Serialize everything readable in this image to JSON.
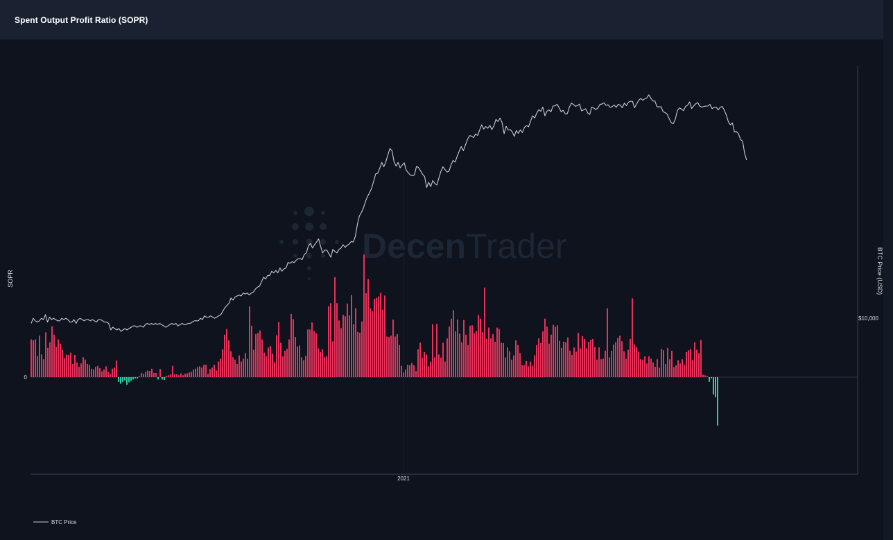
{
  "page": {
    "title": "Spent Output Profit Ratio (SOPR)"
  },
  "watermark": {
    "text_bold": "Decen",
    "text_light": "Trader"
  },
  "chart_data": {
    "type": "bar",
    "title": "Spent Output Profit Ratio (SOPR)",
    "left_axis": {
      "label": "SOPR",
      "ticks": [
        "0"
      ]
    },
    "right_axis": {
      "label": "BTC Price (USD)",
      "ticks": [
        "$10,000"
      ]
    },
    "x_axis": {
      "ticks": [
        "2021"
      ]
    },
    "colors": {
      "positive": "#e8325a",
      "negative": "#26d0a0",
      "price_line": "#c9ccd3",
      "grid": "#263041"
    },
    "legend": {
      "position": "bottom-left",
      "entries": [
        {
          "name": "BTC Price",
          "color": "#c9ccd3"
        }
      ]
    },
    "series": [
      {
        "name": "SOPR",
        "type": "bar",
        "values": [
          0.8,
          0.78,
          0.8,
          0.45,
          0.88,
          0.48,
          0.38,
          0.95,
          0.62,
          0.74,
          1.08,
          0.9,
          0.64,
          0.8,
          0.71,
          0.58,
          0.4,
          0.48,
          0.47,
          0.52,
          0.28,
          0.47,
          0.31,
          0.22,
          0.29,
          0.42,
          0.37,
          0.28,
          0.26,
          0.18,
          0.16,
          0.22,
          0.24,
          0.19,
          0.12,
          0.16,
          0.23,
          0.11,
          0.07,
          0.18,
          0.2,
          0.35,
          -0.1,
          -0.14,
          -0.1,
          -0.07,
          -0.16,
          -0.11,
          -0.08,
          -0.05,
          -0.03,
          -0.03,
          0.02,
          0.09,
          0.07,
          0.11,
          0.14,
          0.13,
          0.18,
          0.09,
          0.09,
          -0.05,
          0.17,
          -0.05,
          -0.06,
          0.03,
          0.04,
          0.06,
          0.24,
          0.06,
          0.06,
          0.04,
          0.08,
          0.04,
          0.07,
          0.08,
          0.1,
          0.11,
          0.16,
          0.18,
          0.21,
          0.23,
          0.2,
          0.26,
          0.26,
          0.07,
          0.17,
          0.2,
          0.26,
          0.14,
          0.33,
          0.39,
          0.59,
          0.9,
          1.02,
          0.78,
          0.55,
          0.42,
          0.37,
          0.28,
          0.46,
          0.33,
          0.39,
          0.51,
          0.39,
          1.5,
          1.09,
          0.58,
          0.91,
          0.94,
          0.99,
          0.8,
          0.52,
          0.44,
          0.63,
          0.66,
          0.5,
          0.32,
          0.89,
          1.17,
          0.73,
          0.44,
          0.56,
          0.6,
          0.8,
          1.34,
          1.23,
          0.85,
          0.65,
          0.67,
          0.42,
          0.36,
          0.45,
          1.01,
          1.01,
          1.16,
          0.98,
          0.93,
          0.61,
          0.53,
          0.59,
          0.42,
          0.44,
          1.5,
          1.57,
          0.76,
          2.12,
          1.57,
          1.2,
          1.04,
          1.32,
          1.29,
          1.56,
          1.31,
          1.74,
          1.12,
          1.46,
          0.96,
          0.94,
          1.18,
          2.6,
          1.78,
          2.08,
          1.46,
          1.4,
          1.66,
          1.68,
          1.71,
          1.79,
          1.43,
          1.73,
          0.86,
          0.85,
          0.88,
          1.22,
          0.86,
          0.91,
          0.68,
          0.24,
          0.1,
          0.16,
          0.26,
          0.25,
          0.3,
          0.25,
          0.13,
          0.59,
          0.73,
          0.41,
          0.53,
          0.48,
          0.23,
          0.33,
          1.12,
          0.42,
          1.13,
          0.48,
          0.41,
          0.73,
          0.33,
          0.82,
          1.07,
          1.24,
          1.42,
          0.97,
          1.22,
          0.92,
          0.74,
          1.21,
          0.9,
          0.68,
          1.09,
          1.1,
          0.93,
          0.97,
          1.32,
          1.24,
          0.95,
          1.9,
          0.81,
          1.05,
          0.82,
          0.91,
          0.75,
          1.05,
          1.02,
          0.73,
          0.72,
          0.42,
          0.63,
          0.55,
          0.37,
          0.46,
          0.78,
          0.68,
          0.51,
          0.25,
          0.25,
          0.34,
          0.23,
          0.33,
          0.24,
          0.46,
          0.68,
          0.82,
          0.72,
          0.97,
          1.24,
          1.07,
          0.71,
          0.9,
          1.11,
          1.07,
          1.1,
          0.77,
          0.62,
          0.75,
          0.74,
          0.84,
          0.56,
          0.47,
          0.63,
          0.54,
          0.94,
          0.61,
          0.87,
          0.81,
          0.61,
          0.75,
          0.79,
          0.81,
          0.64,
          0.37,
          0.63,
          0.38,
          0.39,
          0.56,
          1.46,
          0.42,
          0.56,
          0.69,
          0.74,
          0.83,
          0.88,
          0.76,
          0.55,
          0.39,
          0.58,
          0.81,
          1.67,
          0.69,
          0.64,
          0.54,
          0.38,
          0.37,
          0.44,
          0.29,
          0.44,
          0.39,
          0.31,
          0.22,
          0.38,
          0.2,
          0.6,
          0.57,
          0.28,
          0.62,
          0.38,
          0.56,
          0.21,
          0.25,
          0.36,
          0.29,
          0.38,
          0.26,
          0.53,
          0.57,
          0.6,
          0.36,
          0.74,
          0.58,
          0.51,
          0.79,
          0.05,
          0.04,
          0.02,
          -0.1,
          -0.03,
          -0.37,
          -0.43,
          -1.03
        ]
      },
      {
        "name": "BTC Price",
        "type": "line",
        "values": [
          9300,
          9700,
          9500,
          9400,
          9500,
          9700,
          9600,
          10000,
          9400,
          9800,
          9600,
          9700,
          9600,
          9500,
          9500,
          9700,
          9600,
          9700,
          9600,
          9400,
          9400,
          9600,
          9300,
          9600,
          9700,
          9600,
          9500,
          9600,
          9600,
          9500,
          9600,
          9500,
          9400,
          9600,
          9600,
          9500,
          9400,
          9400,
          9300,
          8800,
          9000,
          8900,
          8800,
          8900,
          8700,
          8800,
          8900,
          8800,
          8900,
          9000,
          9100,
          9100,
          9000,
          9100,
          9100,
          9000,
          9200,
          9300,
          9200,
          9300,
          9200,
          9300,
          9200,
          9300,
          9200,
          9100,
          9000,
          9100,
          9200,
          9300,
          9200,
          9300,
          9100,
          9200,
          9300,
          9200,
          9200,
          9300,
          9300,
          9400,
          9500,
          9500,
          9500,
          9700,
          9600,
          9900,
          9800,
          9800,
          9900,
          9800,
          9700,
          9800,
          9900,
          10000,
          10300,
          10600,
          10800,
          11000,
          11500,
          11300,
          11600,
          11700,
          11800,
          11700,
          12000,
          11900,
          12000,
          11800,
          12000,
          12100,
          12400,
          12600,
          12700,
          13200,
          13700,
          13500,
          13900,
          13900,
          14400,
          14200,
          14500,
          14200,
          14800,
          14400,
          14700,
          14800,
          15500,
          15400,
          15600,
          15500,
          15800,
          16000,
          16000,
          15900,
          16600,
          16800,
          17800,
          18200,
          17500,
          18000,
          18400,
          18900,
          17700,
          16800,
          17200,
          17200,
          16700,
          16200,
          17300,
          17000,
          16800,
          17300,
          17500,
          18000,
          17600,
          17900,
          18100,
          18500,
          18400,
          19300,
          21300,
          22900,
          23600,
          24500,
          25900,
          27000,
          27800,
          28900,
          30600,
          32600,
          32800,
          34200,
          35900,
          34600,
          36100,
          38300,
          40300,
          39600,
          36100,
          34800,
          35900,
          34300,
          35100,
          35800,
          33600,
          32900,
          32300,
          32100,
          32300,
          34700,
          34400,
          33500,
          32500,
          31900,
          29100,
          30400,
          29300,
          30800,
          30100,
          29700,
          31500,
          33300,
          34600,
          33800,
          33100,
          33400,
          35200,
          36500,
          36000,
          37900,
          39500,
          41000,
          39600,
          41500,
          43500,
          44900,
          44800,
          44200,
          45600,
          45000,
          47100,
          49200,
          47500,
          48500,
          47800,
          49000,
          47300,
          48800,
          51500,
          50600,
          52100,
          50200,
          45700,
          48600,
          47100,
          47300,
          46400,
          44700,
          46900,
          45800,
          47200,
          46100,
          48200,
          48900,
          48400,
          50800,
          53100,
          52100,
          54300,
          55900,
          55100,
          57100,
          53100,
          55100,
          55800,
          54900,
          57600,
          57700,
          58500,
          56700,
          54900,
          55600,
          53900,
          54000,
          57100,
          59000,
          58400,
          57500,
          57800,
          58600,
          55300,
          55800,
          56300,
          54400,
          53700,
          57100,
          56600,
          56000,
          56600,
          58400,
          58600,
          59200,
          57900,
          58200,
          57000,
          57300,
          58100,
          57000,
          58500,
          58000,
          56800,
          59000,
          57800,
          59500,
          60000,
          59900,
          56800,
          58600,
          60400,
          61400,
          60500,
          61200,
          61700,
          63300,
          61500,
          60100,
          60100,
          57300,
          57200,
          57300,
          55000,
          54500,
          53800,
          51800,
          50100,
          49700,
          51600,
          55500,
          56700,
          56200,
          55400,
          57400,
          58000,
          59600,
          56400,
          57700,
          58700,
          59300,
          57500,
          57100,
          57400,
          57600,
          57600,
          58400,
          56400,
          56900,
          57100,
          55800,
          57000,
          57400,
          55700,
          53500,
          50500,
          49200,
          50000,
          46400,
          46500,
          45600,
          43500,
          42900,
          38700,
          36600
        ]
      }
    ]
  }
}
